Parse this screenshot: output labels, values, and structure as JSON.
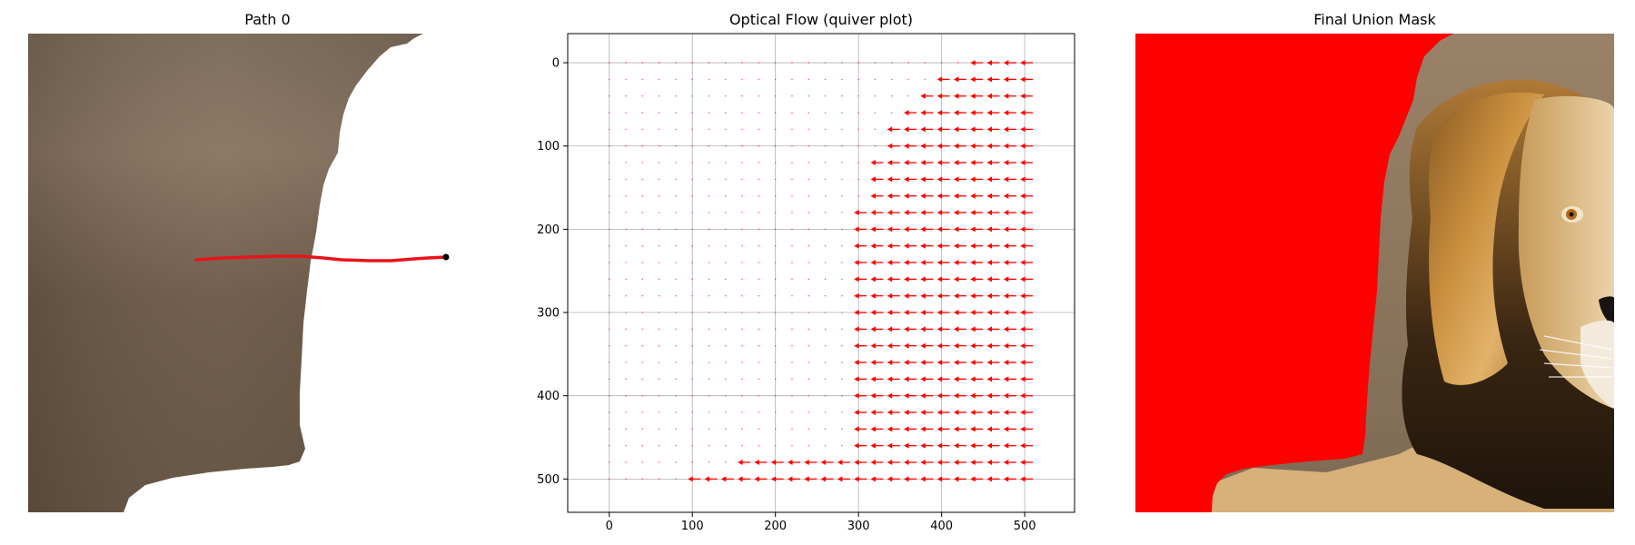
{
  "panels": {
    "path_title": "Path 0",
    "flow_title": "Optical Flow (quiver plot)",
    "mask_title": "Final Union Mask"
  },
  "colors": {
    "path_line": "#e8141b",
    "path_endpoint": "#000000",
    "arrow": "#ff0000",
    "mask": "#ff0000",
    "grid": "#b0b0b0",
    "background_blur": "#6f5d4a"
  },
  "chart_data": [
    {
      "type": "scatter",
      "title": "Path 0",
      "series": [
        {
          "x": [
            185,
            215,
            245,
            275,
            300,
            325,
            345,
            375,
            400,
            425,
            440,
            460
          ],
          "y": [
            249,
            247,
            246,
            245,
            245,
            247,
            249,
            250,
            250,
            248,
            247,
            246
          ]
        }
      ],
      "endpoint": [
        460,
        246
      ],
      "xlim": [
        0,
        527
      ],
      "ylim": [
        527,
        0
      ]
    },
    {
      "type": "quiver",
      "title": "Optical Flow (quiver plot)",
      "xlim": [
        -50,
        560
      ],
      "ylim": [
        540,
        -35
      ],
      "xticks": [
        0,
        100,
        200,
        300,
        400,
        500
      ],
      "yticks": [
        0,
        100,
        200,
        300,
        400,
        500
      ],
      "grid": true,
      "grid_step": 20,
      "arrow_direction": "left"
    },
    {
      "type": "image",
      "title": "Final Union Mask"
    }
  ]
}
